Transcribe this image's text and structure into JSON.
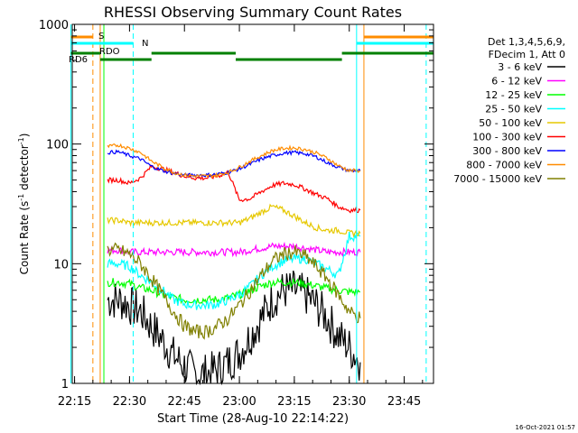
{
  "title": "RHESSI Observing Summary Count Rates",
  "ylabel_main": "Count Rate (s",
  "ylabel_sup1": "-1",
  "ylabel_mid": " detector",
  "ylabel_sup2": "-1",
  "ylabel_end": ")",
  "xlabel": "Start Time (28-Aug-10 22:14:22)",
  "timestamp": "16-Oct-2021 01:57",
  "legend_header": [
    "Det 1,3,4,5,6,9,",
    "FDecim 1, Att 0"
  ],
  "flags": [
    {
      "label": "S",
      "color": "#ff8c00"
    },
    {
      "label": "N",
      "color": "#00ffff"
    },
    {
      "label": "RDO",
      "color": "#008000"
    },
    {
      "label": "RD6",
      "color": "#008000"
    }
  ],
  "chart_data": {
    "type": "line",
    "title": "RHESSI Observing Summary Count Rates",
    "xlabel": "Start Time (28-Aug-10 22:14:22)",
    "ylabel": "Count Rate (s-1 detector-1)",
    "yscale": "log",
    "ylim": [
      1,
      1000
    ],
    "xlim": [
      "22:14:22",
      "23:53:00"
    ],
    "x_ticks": [
      "22:15",
      "22:30",
      "22:45",
      "23:00",
      "23:15",
      "23:30",
      "23:45"
    ],
    "y_ticks": [
      "1",
      "10",
      "100",
      "1000"
    ],
    "x": [
      "22:24",
      "22:27",
      "22:30",
      "22:33",
      "22:36",
      "22:39",
      "22:42",
      "22:45",
      "22:48",
      "22:51",
      "22:54",
      "22:57",
      "23:00",
      "23:03",
      "23:06",
      "23:09",
      "23:12",
      "23:15",
      "23:18",
      "23:21",
      "23:24",
      "23:27",
      "23:30",
      "23:33"
    ],
    "series": [
      {
        "name": "3 - 6 keV",
        "color": "#000000",
        "values": [
          5,
          5,
          4.5,
          4,
          3,
          2.3,
          1.7,
          1.4,
          1.2,
          1.2,
          1.3,
          1.5,
          1.8,
          2.5,
          3.5,
          5,
          6,
          6,
          5.5,
          4.5,
          3.5,
          2.5,
          2,
          1.5
        ]
      },
      {
        "name": "6 - 12 keV",
        "color": "#ff00ff",
        "values": [
          13,
          13,
          12.5,
          12.5,
          12.5,
          12.5,
          12.5,
          12.5,
          12.5,
          12.5,
          12.5,
          12.5,
          12.5,
          13,
          13.5,
          14,
          14,
          14,
          13.5,
          13,
          12.5,
          12.5,
          12.5,
          12.5
        ]
      },
      {
        "name": "12 - 25 keV",
        "color": "#00ff00",
        "values": [
          7,
          7,
          6.8,
          6.3,
          6,
          5.5,
          5.2,
          5,
          5,
          5,
          5,
          5.2,
          5.5,
          6,
          6.5,
          7,
          7,
          7,
          6.8,
          6.5,
          6.2,
          6,
          5.8,
          5.8
        ]
      },
      {
        "name": "25 - 50 keV",
        "color": "#00ffff",
        "values": [
          10,
          10,
          9.5,
          8,
          7,
          6,
          5,
          4.6,
          4.5,
          4.5,
          4.6,
          5,
          5.5,
          6.5,
          8,
          9.5,
          10.5,
          11,
          11,
          10,
          9,
          8,
          17,
          17
        ]
      },
      {
        "name": "50 - 100 keV",
        "color": "#e6c800",
        "values": [
          23,
          23,
          22,
          22,
          22,
          22,
          22,
          22,
          22,
          22,
          22,
          22,
          22,
          24,
          27,
          30,
          28,
          25,
          22,
          20,
          19,
          19,
          18,
          18
        ]
      },
      {
        "name": "100 - 300 keV",
        "color": "#ff0000",
        "values": [
          50,
          50,
          47,
          52,
          65,
          62,
          58,
          54,
          52,
          52,
          54,
          58,
          34,
          35,
          40,
          45,
          47,
          46,
          42,
          38,
          35,
          30,
          28,
          28
        ]
      },
      {
        "name": "300 - 800 keV",
        "color": "#0000ff",
        "values": [
          85,
          86,
          80,
          75,
          65,
          60,
          57,
          55,
          55,
          55,
          56,
          58,
          62,
          68,
          75,
          80,
          84,
          85,
          83,
          78,
          70,
          64,
          60,
          60
        ]
      },
      {
        "name": "800 - 7000 keV",
        "color": "#ff8c00",
        "values": [
          95,
          98,
          92,
          85,
          72,
          64,
          58,
          55,
          54,
          54,
          55,
          58,
          64,
          72,
          80,
          88,
          92,
          93,
          90,
          84,
          76,
          66,
          60,
          60
        ]
      },
      {
        "name": "7000 - 15000 keV",
        "color": "#808000",
        "values": [
          13,
          13,
          12,
          10,
          7.5,
          5.5,
          4,
          3,
          2.7,
          2.7,
          3,
          3.5,
          4.5,
          6,
          8,
          10.5,
          12,
          12.5,
          11.5,
          9.5,
          7.5,
          5.5,
          4,
          3.5
        ]
      }
    ],
    "legend_position": "right",
    "grid": false
  }
}
